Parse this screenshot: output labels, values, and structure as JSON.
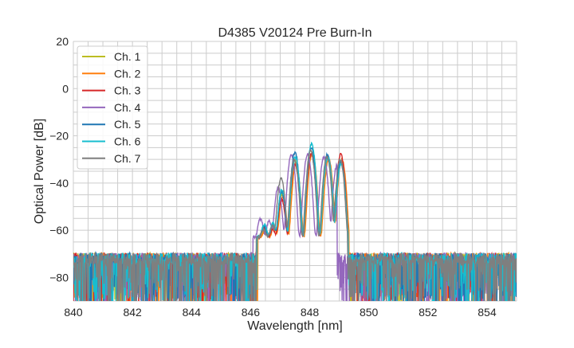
{
  "chart_data": {
    "type": "line",
    "title": "D4385 V20124 Pre Burn-In",
    "xlabel": "Wavelength [nm]",
    "ylabel": "Optical Power [dB]",
    "xlim": [
      840,
      855
    ],
    "ylim": [
      -90,
      20
    ],
    "xticks": [
      840,
      842,
      844,
      846,
      848,
      850,
      852,
      854
    ],
    "yticks": [
      -80,
      -60,
      -40,
      -20,
      0,
      20
    ],
    "grid": true,
    "legend_position": "top-left",
    "noise_floor_db": -72,
    "noise_min_db": -90,
    "band_nm": [
      846.2,
      849.3
    ],
    "peaks_nm": [
      846.45,
      846.75,
      847.05,
      847.5,
      848.05,
      848.6,
      849.05
    ],
    "series": [
      {
        "name": "Ch. 1",
        "color": "#bcbd22",
        "shift_nm": 0.02,
        "peak_db": [
          -62,
          -60,
          -45,
          -31,
          -28,
          -29,
          -31
        ]
      },
      {
        "name": "Ch. 2",
        "color": "#ff7f0e",
        "shift_nm": 0.04,
        "peak_db": [
          -63,
          -61,
          -46,
          -32,
          -27,
          -30,
          -30
        ]
      },
      {
        "name": "Ch. 3",
        "color": "#d62728",
        "shift_nm": 0.0,
        "peak_db": [
          -61,
          -62,
          -47,
          -32,
          -28,
          -29,
          -28
        ]
      },
      {
        "name": "Ch. 4",
        "color": "#9467bd",
        "shift_nm": -0.12,
        "peak_db": [
          -56,
          -57,
          -42,
          -28,
          -28,
          -29,
          -32
        ]
      },
      {
        "name": "Ch. 5",
        "color": "#1f77b4",
        "shift_nm": 0.0,
        "peak_db": [
          -60,
          -59,
          -44,
          -27,
          -25,
          -28,
          -31
        ]
      },
      {
        "name": "Ch. 6",
        "color": "#17becf",
        "shift_nm": 0.01,
        "peak_db": [
          -59,
          -58,
          -43,
          -29,
          -23.5,
          -29,
          -32
        ]
      },
      {
        "name": "Ch. 7",
        "color": "#7f7f7f",
        "shift_nm": -0.02,
        "peak_db": [
          -62,
          -60,
          -38,
          -30,
          -26,
          -29,
          -30
        ]
      }
    ]
  }
}
